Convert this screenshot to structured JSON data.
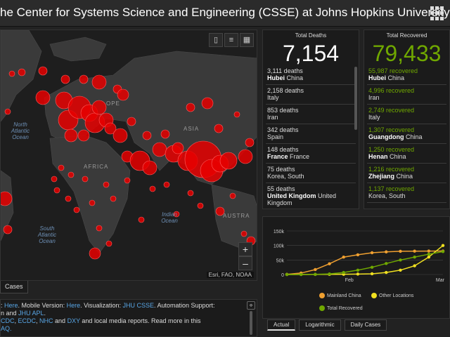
{
  "header": {
    "title": "he Center for Systems Science and Engineering (CSSE) at Johns Hopkins University…",
    "menu_icon": "grid-icon"
  },
  "map": {
    "tools": {
      "bookmark_icon": "bookmark-icon",
      "list_icon": "list-icon",
      "qr_icon": "qr-icon"
    },
    "labels": {
      "north_atlantic": "North Atlantic Ocean",
      "south_atlantic": "South Atlantic Ocean",
      "indian": "Indian Ocean",
      "africa": "AFRICA",
      "asia": "ASIA",
      "europe": "OPE",
      "australia": "AUSTRA"
    },
    "zoom_in": "+",
    "zoom_out": "–",
    "credit": "Esri, FAO, NOAA",
    "bubble_color": "#e60000"
  },
  "map_tab": "Cases",
  "info": {
    "line1_prefix": ": ",
    "here1": "Here",
    "mobile": ". Mobile Version: ",
    "here2": "Here",
    "viz": ". Visualization: ",
    "jhu_csse": "JHU CSSE",
    "auto": ". Automation Support:",
    "line2_prefix": "n and ",
    "jhu_apl": "JHU APL",
    "line2_suffix": ".",
    "cdc": "CDC",
    "ecdc": "ECDC",
    "nhc": "NHC",
    "and": " and ",
    "dxy": "DXY",
    "tail": " and local media reports. Read more in this",
    "line4": "AQ."
  },
  "deaths": {
    "header": "Total Deaths",
    "total": "7,154",
    "rows": [
      {
        "value": "3,111 deaths",
        "bold": "Hubei",
        "place": " China"
      },
      {
        "value": "2,158 deaths",
        "bold": "",
        "place": "Italy"
      },
      {
        "value": "853 deaths",
        "bold": "",
        "place": "Iran"
      },
      {
        "value": "342 deaths",
        "bold": "",
        "place": "Spain"
      },
      {
        "value": "148 deaths",
        "bold": "France",
        "place": " France"
      },
      {
        "value": "75 deaths",
        "bold": "",
        "place": "Korea, South"
      },
      {
        "value": "55 deaths",
        "bold": "United Kingdom",
        "place": " United Kingdom"
      }
    ]
  },
  "recovered": {
    "header": "Total Recovered",
    "total": "79,433",
    "accent": "#70a800",
    "rows": [
      {
        "value": "55,987 recovered",
        "bold": "Hubei",
        "place": " China"
      },
      {
        "value": "4,996 recovered",
        "bold": "",
        "place": "Iran"
      },
      {
        "value": "2,749 recovered",
        "bold": "",
        "place": "Italy"
      },
      {
        "value": "1,307 recovered",
        "bold": "Guangdong",
        "place": " China"
      },
      {
        "value": "1,250 recovered",
        "bold": "Henan",
        "place": " China"
      },
      {
        "value": "1,216 recovered",
        "bold": "Zhejiang",
        "place": " China"
      },
      {
        "value": "1,137 recovered",
        "bold": "",
        "place": "Korea, South"
      }
    ]
  },
  "chart_data": {
    "type": "line",
    "title": "",
    "xlabel": "",
    "ylabel": "",
    "x_ticks": [
      "Feb",
      "Mar"
    ],
    "y_ticks": [
      "0",
      "50k",
      "100k",
      "150k"
    ],
    "ylim": [
      0,
      150000
    ],
    "x": [
      0,
      5,
      10,
      15,
      20,
      25,
      30,
      35,
      40,
      45,
      50,
      55
    ],
    "series": [
      {
        "name": "Mainland China",
        "color": "#f0a030",
        "values": [
          500,
          5000,
          17000,
          37000,
          60000,
          68000,
          75000,
          78000,
          80000,
          80500,
          80800,
          81000
        ]
      },
      {
        "name": "Other Locations",
        "color": "#f0e020",
        "values": [
          0,
          100,
          300,
          500,
          800,
          1500,
          2500,
          7000,
          15000,
          30000,
          60000,
          100000
        ]
      },
      {
        "name": "Total Recovered",
        "color": "#70a800",
        "values": [
          0,
          100,
          500,
          2000,
          7000,
          15000,
          25000,
          38000,
          50000,
          60000,
          70000,
          79000
        ]
      }
    ],
    "grid": true,
    "legend_position": "bottom"
  },
  "chart_tabs": [
    "Actual",
    "Logarithmic",
    "Daily Cases"
  ],
  "active_chart_tab": "Actual"
}
